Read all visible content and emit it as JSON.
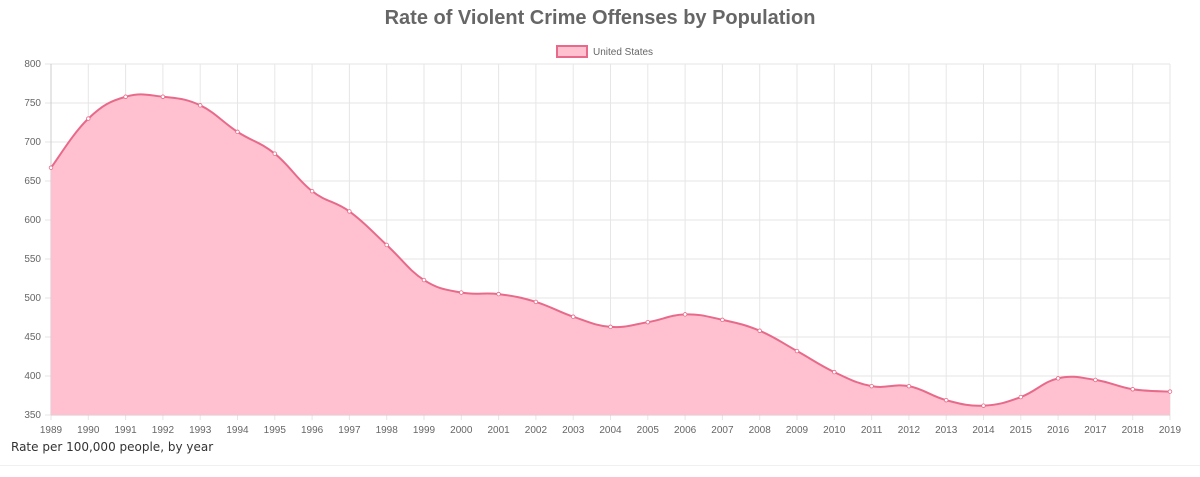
{
  "chart_data": {
    "type": "area",
    "title": "Rate of Violent Crime Offenses by Population",
    "caption": "Rate per 100,000 people, by year",
    "legend": {
      "label": "United States",
      "position": "top"
    },
    "x": [
      1989,
      1990,
      1991,
      1992,
      1993,
      1994,
      1995,
      1996,
      1997,
      1998,
      1999,
      2000,
      2001,
      2002,
      2003,
      2004,
      2005,
      2006,
      2007,
      2008,
      2009,
      2010,
      2011,
      2012,
      2013,
      2014,
      2015,
      2016,
      2017,
      2018,
      2019
    ],
    "series": [
      {
        "name": "United States",
        "values": [
          667,
          730,
          758,
          758,
          747,
          713,
          685,
          637,
          611,
          568,
          523,
          507,
          505,
          495,
          476,
          463,
          469,
          479,
          472,
          458,
          432,
          405,
          387,
          387,
          369,
          362,
          373,
          397,
          395,
          383,
          380
        ]
      }
    ],
    "ylim": [
      350,
      800
    ],
    "yticks": [
      350,
      400,
      450,
      500,
      550,
      600,
      650,
      700,
      750,
      800
    ],
    "grid": true,
    "colors": {
      "line": "#e86a8a",
      "fill": "#ffc1cf",
      "grid": "#e6e6e6",
      "axis": "#cccccc"
    }
  }
}
